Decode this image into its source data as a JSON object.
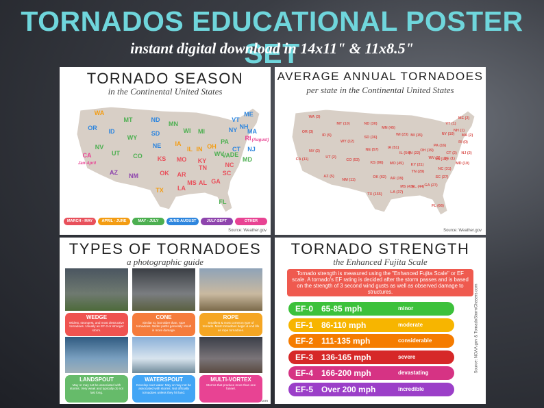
{
  "header": {
    "title": "TORNADOS EDUCATIONAL POSTER SET",
    "subtitle": "instant digital download in 14x11\" & 11x8.5\""
  },
  "season_poster": {
    "title": "TORNADO SEASON",
    "subtitle": "in the Continental United States",
    "labels": [
      {
        "text": "WA",
        "color": "#f39c12"
      },
      {
        "text": "OR",
        "color": "#2e86de"
      },
      {
        "text": "CA",
        "color": "#e84393"
      },
      {
        "text": "Jan-April",
        "color": "#e84393"
      },
      {
        "text": "NV",
        "color": "#4caf50"
      },
      {
        "text": "ID",
        "color": "#2e86de"
      },
      {
        "text": "MT",
        "color": "#4caf50"
      },
      {
        "text": "WY",
        "color": "#4caf50"
      },
      {
        "text": "UT",
        "color": "#4caf50"
      },
      {
        "text": "AZ",
        "color": "#8e44ad"
      },
      {
        "text": "CO",
        "color": "#4caf50"
      },
      {
        "text": "NM",
        "color": "#8e44ad"
      },
      {
        "text": "ND",
        "color": "#2e86de"
      },
      {
        "text": "SD",
        "color": "#2e86de"
      },
      {
        "text": "NE",
        "color": "#2e86de"
      },
      {
        "text": "KS",
        "color": "#e8505b"
      },
      {
        "text": "OK",
        "color": "#e8505b"
      },
      {
        "text": "TX",
        "color": "#f39c12"
      },
      {
        "text": "MN",
        "color": "#4caf50"
      },
      {
        "text": "IA",
        "color": "#f39c12"
      },
      {
        "text": "MO",
        "color": "#e8505b"
      },
      {
        "text": "AR",
        "color": "#e8505b"
      },
      {
        "text": "LA",
        "color": "#e8505b"
      },
      {
        "text": "WI",
        "color": "#4caf50"
      },
      {
        "text": "IL",
        "color": "#f39c12"
      },
      {
        "text": "MI",
        "color": "#4caf50"
      },
      {
        "text": "IN",
        "color": "#f39c12"
      },
      {
        "text": "OH",
        "color": "#f39c12"
      },
      {
        "text": "KY",
        "color": "#e8505b"
      },
      {
        "text": "TN",
        "color": "#e8505b"
      },
      {
        "text": "MS",
        "color": "#e8505b"
      },
      {
        "text": "AL",
        "color": "#e8505b"
      },
      {
        "text": "GA",
        "color": "#e8505b"
      },
      {
        "text": "FL",
        "color": "#4caf50"
      },
      {
        "text": "SC",
        "color": "#e8505b"
      },
      {
        "text": "NC",
        "color": "#e8505b"
      },
      {
        "text": "VA",
        "color": "#4caf50"
      },
      {
        "text": "WV",
        "color": "#4caf50"
      },
      {
        "text": "PA",
        "color": "#4caf50"
      },
      {
        "text": "NY",
        "color": "#2e86de"
      },
      {
        "text": "VT",
        "color": "#2e86de"
      },
      {
        "text": "NH",
        "color": "#2e86de"
      },
      {
        "text": "ME",
        "color": "#2e86de"
      },
      {
        "text": "MA",
        "color": "#2e86de"
      },
      {
        "text": "RI",
        "color": "#e84393"
      },
      {
        "text": "(August)",
        "color": "#e84393"
      },
      {
        "text": "CT",
        "color": "#2e86de"
      },
      {
        "text": "NJ",
        "color": "#2e86de"
      },
      {
        "text": "DE",
        "color": "#4caf50"
      },
      {
        "text": "MD",
        "color": "#4caf50"
      }
    ],
    "legend": [
      {
        "text": "MARCH - MAY",
        "color": "#e8505b"
      },
      {
        "text": "APRIL - JUNE",
        "color": "#f39c12"
      },
      {
        "text": "MAY - JULY",
        "color": "#4caf50"
      },
      {
        "text": "JUNE-AUGUST",
        "color": "#2e86de"
      },
      {
        "text": "JULY-SEPT",
        "color": "#8e44ad"
      },
      {
        "text": "OTHER",
        "color": "#e84393"
      }
    ],
    "source": "Source: Weather.gov"
  },
  "average_poster": {
    "title": "AVERAGE ANNUAL TORNADOES",
    "subtitle": "per state in the Continental United States",
    "labels": [
      "WA (3)",
      "OR (3)",
      "CA (11)",
      "NV (2)",
      "ID (5)",
      "MT (10)",
      "WY (12)",
      "UT (2)",
      "AZ (5)",
      "CO (53)",
      "NM (11)",
      "ND (30)",
      "SD (36)",
      "NE (57)",
      "KS (96)",
      "OK (62)",
      "TX (155)",
      "MN (45)",
      "IA (51)",
      "MO (45)",
      "AR (39)",
      "LA (37)",
      "WI (23)",
      "IL (54)",
      "MI (15)",
      "IN (22)",
      "OH (19)",
      "KY (21)",
      "TN (29)",
      "MS (43)",
      "AL (44)",
      "GA (27)",
      "FL (66)",
      "SC (27)",
      "NC (31)",
      "VA (18)",
      "WV (2)",
      "PA (16)",
      "NY (10)",
      "VT (1)",
      "NH (1)",
      "ME (2)",
      "MA (2)",
      "RI (0)",
      "CT (2)",
      "NJ (2)",
      "DE (1)",
      "MD (10)"
    ],
    "label_color": "#d9534f",
    "source": "Source: Weather.gov"
  },
  "types_poster": {
    "title": "TYPES OF TORNADOES",
    "subtitle": "a photographic guide",
    "types": [
      {
        "name": "WEDGE",
        "description": "Widest, strongest, and most destructive tornadoes. Usually an EF-3 or stronger storm.",
        "color": "#ef5350"
      },
      {
        "name": "CONE",
        "description": "Similar to, but wider than, rope tornadoes. Wider paths generally result in more damage.",
        "color": "#f57c3c"
      },
      {
        "name": "ROPE",
        "description": "Smallest & most common type of tornado. Most tornadoes begin & end life as rope tornadoes.",
        "color": "#f5a623"
      },
      {
        "name": "LANDSPOUT",
        "description": "May or may not be associated with storms. Very weak and typically do not last long.",
        "color": "#66bb6a"
      },
      {
        "name": "WATERSPOUT",
        "description": "Develop over water. May or may not be associated with storms. Not officially tornadoes unless they hit land.",
        "color": "#42a5f5"
      },
      {
        "name": "MULTI-VORTEX",
        "description": "Storms that produce more than one funnel.",
        "color": "#e84393"
      }
    ],
    "source": "Source: Accuweather.com"
  },
  "strength_poster": {
    "title": "TORNADO STRENGTH",
    "subtitle": "the Enhanced Fujita Scale",
    "description": "Tornado strength is measured using the \"Enhanced Fujita Scale\" or EF scale. A tornado's EF rating is decided after the storm passes and is based on the strength of 3 second wind gusts as well as observed damage to structures.",
    "levels": [
      {
        "level": "EF-0",
        "speed": "65-85 mph",
        "rating": "minor",
        "color": "#3cc13b"
      },
      {
        "level": "EF-1",
        "speed": "86-110 mph",
        "rating": "moderate",
        "color": "#f7b500"
      },
      {
        "level": "EF-2",
        "speed": "111-135 mph",
        "rating": "considerable",
        "color": "#f57c00"
      },
      {
        "level": "EF-3",
        "speed": "136-165 mph",
        "rating": "severe",
        "color": "#d62828"
      },
      {
        "level": "EF-4",
        "speed": "166-200 mph",
        "rating": "devastating",
        "color": "#d63384"
      },
      {
        "level": "EF-5",
        "speed": "Over 200 mph",
        "rating": "incredible",
        "color": "#9b3fc8"
      }
    ],
    "source": "Source: NOAA.gov & TornadoStormChasers.com"
  }
}
